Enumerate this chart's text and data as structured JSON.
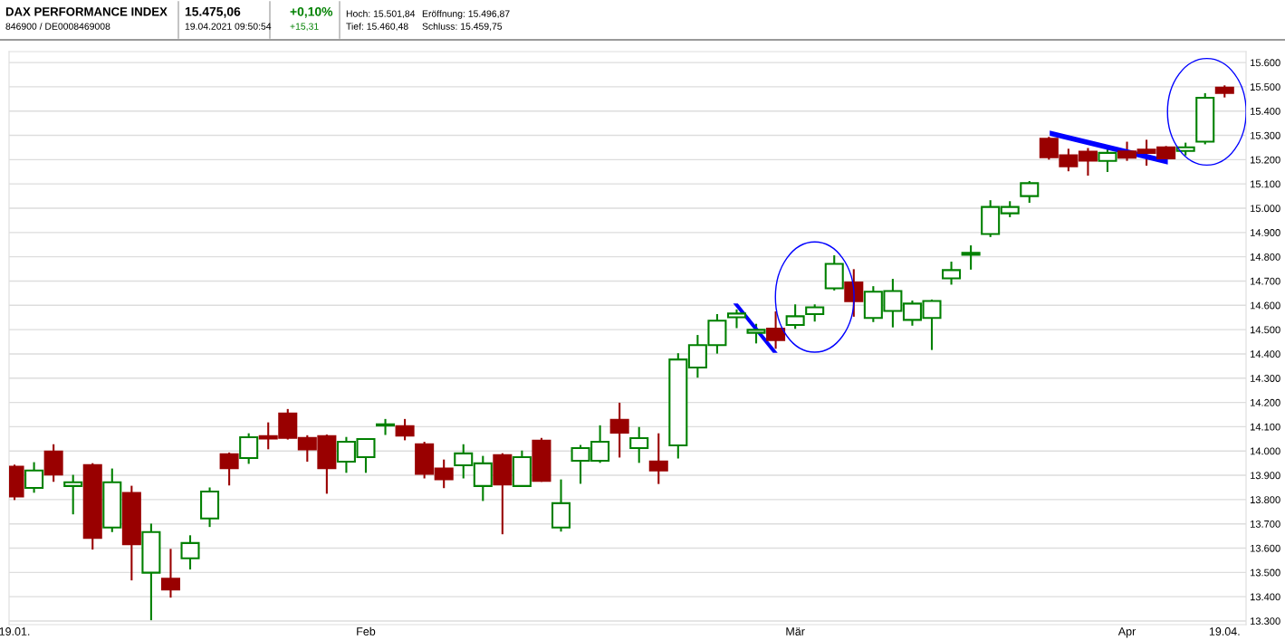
{
  "chart_data": {
    "type": "candlestick",
    "title": "DAX PERFORMANCE INDEX",
    "subtitle": "846900 / DE0008469008",
    "annotations": [
      "15.475,06",
      "19.04.2021 09:50:54",
      "+0,10%",
      "+15,31",
      "Hoch: 15.501,84",
      "Eröffnung: 15.496,87",
      "Tief: 15.460,48",
      "Schluss: 15.459,75"
    ],
    "categories": [
      "19.01.",
      null,
      null,
      null,
      null,
      null,
      null,
      null,
      null,
      null,
      null,
      null,
      null,
      null,
      null,
      null,
      null,
      null,
      "Feb",
      null,
      null,
      null,
      null,
      null,
      null,
      null,
      null,
      null,
      null,
      null,
      null,
      null,
      null,
      null,
      null,
      null,
      null,
      null,
      null,
      null,
      "Mär",
      null,
      null,
      null,
      null,
      null,
      null,
      null,
      null,
      null,
      null,
      null,
      null,
      null,
      null,
      null,
      null,
      "Apr",
      null,
      null,
      null,
      null,
      "19.04."
    ],
    "ohlc": [
      [
        13935,
        13940,
        13802,
        13813
      ],
      [
        13848,
        13950,
        13832,
        13920
      ],
      [
        13998,
        14024,
        13877,
        13903
      ],
      [
        13856,
        13898,
        13743,
        13871
      ],
      [
        13942,
        13946,
        13598,
        13642
      ],
      [
        13685,
        13924,
        13670,
        13871
      ],
      [
        13827,
        13853,
        13471,
        13616
      ],
      [
        13499,
        13697,
        13307,
        13666
      ],
      [
        13474,
        13593,
        13400,
        13430
      ],
      [
        13558,
        13649,
        13516,
        13621
      ],
      [
        13722,
        13846,
        13691,
        13833
      ],
      [
        13987,
        13990,
        13862,
        13929
      ],
      [
        13971,
        14069,
        13951,
        14057
      ],
      [
        14061,
        14114,
        14011,
        14051
      ],
      [
        14154,
        14169,
        14051,
        14054
      ],
      [
        14054,
        14061,
        13960,
        14007
      ],
      [
        14061,
        14064,
        13828,
        13929
      ],
      [
        13956,
        14054,
        13914,
        14038
      ],
      [
        13975,
        14049,
        13914,
        14049
      ],
      [
        14105,
        14128,
        14070,
        14110
      ],
      [
        14102,
        14128,
        14048,
        14063
      ],
      [
        14028,
        14034,
        13891,
        13906
      ],
      [
        13928,
        13961,
        13851,
        13884
      ],
      [
        13941,
        14024,
        13891,
        13990
      ],
      [
        13856,
        13976,
        13798,
        13949
      ],
      [
        13983,
        13987,
        13661,
        13862
      ],
      [
        13856,
        13998,
        13856,
        13975
      ],
      [
        14043,
        14050,
        13877,
        13877
      ],
      [
        13685,
        13879,
        13672,
        13785
      ],
      [
        13960,
        14021,
        13869,
        14012
      ],
      [
        13960,
        14102,
        13955,
        14038
      ],
      [
        14128,
        14195,
        13977,
        14076
      ],
      [
        14012,
        14095,
        13955,
        14053
      ],
      [
        13957,
        14069,
        13868,
        13920
      ],
      [
        14023,
        14399,
        13973,
        14377
      ],
      [
        14344,
        14474,
        14306,
        14436
      ],
      [
        14436,
        14560,
        14405,
        14537
      ],
      [
        14551,
        14579,
        14510,
        14566
      ],
      [
        14487,
        14520,
        14447,
        14499
      ],
      [
        14504,
        14571,
        14425,
        14457
      ],
      [
        14519,
        14600,
        14507,
        14555
      ],
      [
        14564,
        14600,
        14537,
        14592
      ],
      [
        14670,
        14802,
        14665,
        14771
      ],
      [
        14694,
        14745,
        14557,
        14617
      ],
      [
        14548,
        14675,
        14535,
        14656
      ],
      [
        14577,
        14705,
        14513,
        14659
      ],
      [
        14540,
        14616,
        14520,
        14607
      ],
      [
        14548,
        14620,
        14420,
        14618
      ],
      [
        14711,
        14776,
        14689,
        14745
      ],
      [
        14808,
        14843,
        14751,
        14816
      ],
      [
        14894,
        15029,
        14885,
        15005
      ],
      [
        14979,
        15025,
        14967,
        15005
      ],
      [
        15050,
        15108,
        15026,
        15103
      ],
      [
        15286,
        15290,
        15204,
        15210
      ],
      [
        15218,
        15241,
        15156,
        15173
      ],
      [
        15233,
        15244,
        15138,
        15196
      ],
      [
        15195,
        15240,
        15153,
        15228
      ],
      [
        15234,
        15270,
        15199,
        15208
      ],
      [
        15241,
        15278,
        15179,
        15228
      ],
      [
        15251,
        15252,
        15205,
        15205
      ],
      [
        15236,
        15266,
        15221,
        15251
      ],
      [
        15274,
        15470,
        15267,
        15455
      ],
      [
        15497,
        15502,
        15460,
        15475
      ]
    ],
    "colors": [
      "#990000",
      "#008000",
      "#990000",
      "#008000",
      "#990000",
      "#008000",
      "#990000",
      "#008000",
      "#990000",
      "#008000",
      "#008000",
      "#990000",
      "#008000",
      "#990000",
      "#990000",
      "#990000",
      "#990000",
      "#008000",
      "#008000",
      "#008000",
      "#990000",
      "#990000",
      "#990000",
      "#008000",
      "#008000",
      "#990000",
      "#008000",
      "#990000",
      "#008000",
      "#008000",
      "#008000",
      "#990000",
      "#008000",
      "#990000",
      "#008000",
      "#008000",
      "#008000",
      "#008000",
      "#008000",
      "#990000",
      "#008000",
      "#008000",
      "#008000",
      "#990000",
      "#008000",
      "#008000",
      "#008000",
      "#008000",
      "#008000",
      "#008000",
      "#008000",
      "#008000",
      "#008000",
      "#990000",
      "#990000",
      "#990000",
      "#008000",
      "#990000",
      "#990000",
      "#990000",
      "#008000",
      "#008000",
      "#990000"
    ],
    "ylim": [
      13285,
      15645
    ],
    "yticks": [
      {
        "value": 13300,
        "label": "13.300"
      },
      {
        "value": 13400,
        "label": "13.400"
      },
      {
        "value": 13500,
        "label": "13.500"
      },
      {
        "value": 13600,
        "label": "13.600"
      },
      {
        "value": 13700,
        "label": "13.700"
      },
      {
        "value": 13800,
        "label": "13.800"
      },
      {
        "value": 13900,
        "label": "13.900"
      },
      {
        "value": 14000,
        "label": "14.000"
      },
      {
        "value": 14100,
        "label": "14.100"
      },
      {
        "value": 14200,
        "label": "14.200"
      },
      {
        "value": 14300,
        "label": "14.300"
      },
      {
        "value": 14400,
        "label": "14.400"
      },
      {
        "value": 14500,
        "label": "14.500"
      },
      {
        "value": 14600,
        "label": "14.600"
      },
      {
        "value": 14700,
        "label": "14.700"
      },
      {
        "value": 14800,
        "label": "14.800"
      },
      {
        "value": 14900,
        "label": "14.900"
      },
      {
        "value": 15000,
        "label": "15.000"
      },
      {
        "value": 15100,
        "label": "15.100"
      },
      {
        "value": 15200,
        "label": "15.200"
      },
      {
        "value": 15300,
        "label": "15.300"
      },
      {
        "value": 15400,
        "label": "15.400"
      },
      {
        "value": 15500,
        "label": "15.500"
      },
      {
        "value": 15600,
        "label": "15.600"
      }
    ],
    "grid": "y"
  }
}
